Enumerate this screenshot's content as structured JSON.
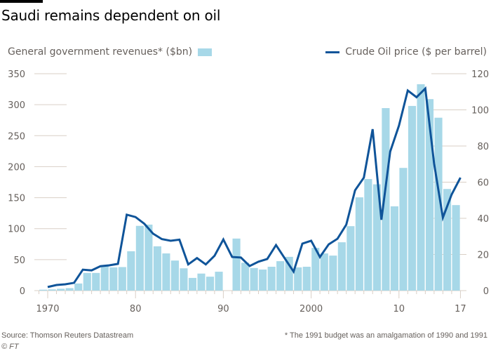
{
  "title": "Saudi remains dependent on oil",
  "legend": {
    "bars_label": "General government revenues* ($bn)",
    "line_label": "Crude Oil price ($ per barrel)"
  },
  "colors": {
    "bars": "#a7d8e8",
    "line": "#0f5499",
    "grid": "#d9cfc6",
    "text": "#66605c"
  },
  "footer": {
    "source": "Source: Thomson Reuters Datastream",
    "copyright": "© FT",
    "footnote": "* The 1991 budget was an amalgamation of 1990 and 1991"
  },
  "chart_data": {
    "type": "bar+line",
    "title": "Saudi remains dependent on oil",
    "x_tick_labels": [
      {
        "year": 1970,
        "label": "1970"
      },
      {
        "year": 1980,
        "label": "80"
      },
      {
        "year": 1990,
        "label": "90"
      },
      {
        "year": 2000,
        "label": "2000"
      },
      {
        "year": 2010,
        "label": "10"
      },
      {
        "year": 2017,
        "label": "17"
      }
    ],
    "left_axis": {
      "label": "General government revenues* ($bn)",
      "range": [
        0,
        350
      ],
      "ticks": [
        0,
        50,
        100,
        150,
        200,
        250,
        300,
        350
      ]
    },
    "right_axis": {
      "label": "Crude Oil price ($ per barrel)",
      "range": [
        0,
        120
      ],
      "ticks": [
        0,
        20,
        40,
        60,
        80,
        100,
        120
      ]
    },
    "grid": true,
    "legend_placement": "top",
    "series": [
      {
        "name": "General government revenues* ($bn)",
        "type": "bar",
        "axis": "left",
        "years": [
          1969,
          1970,
          1971,
          1972,
          1973,
          1974,
          1975,
          1976,
          1977,
          1978,
          1979,
          1980,
          1981,
          1982,
          1983,
          1984,
          1985,
          1986,
          1987,
          1988,
          1989,
          1990,
          1991,
          1992,
          1993,
          1994,
          1995,
          1996,
          1997,
          1998,
          1999,
          2000,
          2001,
          2002,
          2003,
          2004,
          2005,
          2006,
          2007,
          2008,
          2009,
          2010,
          2011,
          2012,
          2013,
          2014,
          2015,
          2016
        ],
        "values": [
          1.5,
          2,
          3,
          4,
          11.5,
          28.5,
          28.5,
          40,
          37.5,
          38,
          63.5,
          104.5,
          106.5,
          71.5,
          60,
          48.5,
          36,
          20.5,
          27.5,
          22.5,
          30.5,
          null,
          84,
          45,
          36.5,
          34,
          38.5,
          47.5,
          54.5,
          37.5,
          38.5,
          69,
          60,
          56.5,
          78,
          104,
          150.5,
          180,
          171.5,
          294.5,
          136,
          198,
          298,
          333,
          309,
          279,
          164,
          138
        ]
      },
      {
        "name": "Crude Oil price ($ per barrel)",
        "type": "line",
        "axis": "right",
        "years": [
          1970,
          1971,
          1972,
          1973,
          1974,
          1975,
          1976,
          1977,
          1978,
          1979,
          1980,
          1981,
          1982,
          1983,
          1984,
          1985,
          1986,
          1987,
          1988,
          1989,
          1990,
          1991,
          1992,
          1993,
          1994,
          1995,
          1996,
          1997,
          1998,
          1999,
          2000,
          2001,
          2002,
          2003,
          2004,
          2005,
          2006,
          2007,
          2008,
          2009,
          2010,
          2011,
          2012,
          2013,
          2014,
          2015,
          2016,
          2017
        ],
        "values": [
          2,
          3.1,
          3.5,
          4.3,
          11.6,
          11.2,
          13.5,
          14,
          14.8,
          42,
          40.7,
          37,
          31.5,
          28.5,
          27.6,
          28.2,
          14.5,
          18,
          14.5,
          19.3,
          28.3,
          18.6,
          18.3,
          13.6,
          16,
          17.5,
          25.2,
          17.8,
          10.5,
          26,
          27.6,
          18.6,
          25.6,
          28.7,
          36.5,
          55.5,
          62.5,
          89.3,
          39.2,
          76.9,
          91.3,
          110.7,
          107,
          111.8,
          70.3,
          40.4,
          53.2,
          62.5
        ]
      }
    ]
  }
}
